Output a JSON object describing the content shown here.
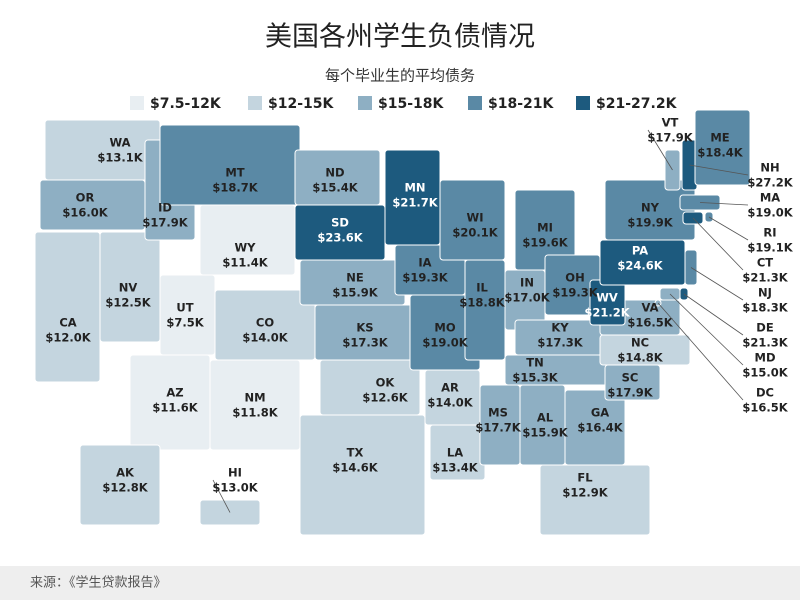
{
  "title": "美国各州学生负债情况",
  "subtitle": "每个毕业生的平均债务",
  "legend": [
    {
      "label": "$7.5-12K",
      "min": 7.5,
      "max": 12,
      "color": "#e8eef2"
    },
    {
      "label": "$12-15K",
      "min": 12,
      "max": 15,
      "color": "#c4d5df"
    },
    {
      "label": "$15-18K",
      "min": 15,
      "max": 18,
      "color": "#8eafc3"
    },
    {
      "label": "$18-21K",
      "min": 18,
      "max": 21,
      "color": "#5a89a5"
    },
    {
      "label": "$21-27.2K",
      "min": 21,
      "max": 27.2,
      "color": "#1d5a7e"
    }
  ],
  "states": [
    {
      "abbr": "WA",
      "value": 13.1,
      "value_label": "$13.1K"
    },
    {
      "abbr": "OR",
      "value": 16.0,
      "value_label": "$16.0K"
    },
    {
      "abbr": "CA",
      "value": 12.0,
      "value_label": "$12.0K"
    },
    {
      "abbr": "NV",
      "value": 12.5,
      "value_label": "$12.5K"
    },
    {
      "abbr": "ID",
      "value": 17.9,
      "value_label": "$17.9K"
    },
    {
      "abbr": "MT",
      "value": 18.7,
      "value_label": "$18.7K"
    },
    {
      "abbr": "WY",
      "value": 11.4,
      "value_label": "$11.4K"
    },
    {
      "abbr": "UT",
      "value": 7.5,
      "value_label": "$7.5K"
    },
    {
      "abbr": "CO",
      "value": 14.0,
      "value_label": "$14.0K"
    },
    {
      "abbr": "AZ",
      "value": 11.6,
      "value_label": "$11.6K"
    },
    {
      "abbr": "NM",
      "value": 11.8,
      "value_label": "$11.8K"
    },
    {
      "abbr": "ND",
      "value": 15.4,
      "value_label": "$15.4K"
    },
    {
      "abbr": "SD",
      "value": 23.6,
      "value_label": "$23.6K"
    },
    {
      "abbr": "NE",
      "value": 15.9,
      "value_label": "$15.9K"
    },
    {
      "abbr": "KS",
      "value": 17.3,
      "value_label": "$17.3K"
    },
    {
      "abbr": "OK",
      "value": 12.6,
      "value_label": "$12.6K"
    },
    {
      "abbr": "TX",
      "value": 14.6,
      "value_label": "$14.6K"
    },
    {
      "abbr": "MN",
      "value": 21.7,
      "value_label": "$21.7K"
    },
    {
      "abbr": "IA",
      "value": 19.3,
      "value_label": "$19.3K"
    },
    {
      "abbr": "MO",
      "value": 19.0,
      "value_label": "$19.0K"
    },
    {
      "abbr": "AR",
      "value": 14.0,
      "value_label": "$14.0K"
    },
    {
      "abbr": "LA",
      "value": 13.4,
      "value_label": "$13.4K"
    },
    {
      "abbr": "WI",
      "value": 20.1,
      "value_label": "$20.1K"
    },
    {
      "abbr": "IL",
      "value": 18.8,
      "value_label": "$18.8K"
    },
    {
      "abbr": "MI",
      "value": 19.6,
      "value_label": "$19.6K"
    },
    {
      "abbr": "IN",
      "value": 17.0,
      "value_label": "$17.0K"
    },
    {
      "abbr": "OH",
      "value": 19.3,
      "value_label": "$19.3K"
    },
    {
      "abbr": "KY",
      "value": 17.3,
      "value_label": "$17.3K"
    },
    {
      "abbr": "TN",
      "value": 15.3,
      "value_label": "$15.3K"
    },
    {
      "abbr": "MS",
      "value": 17.7,
      "value_label": "$17.7K"
    },
    {
      "abbr": "AL",
      "value": 15.9,
      "value_label": "$15.9K"
    },
    {
      "abbr": "FL",
      "value": 12.9,
      "value_label": "$12.9K"
    },
    {
      "abbr": "GA",
      "value": 16.4,
      "value_label": "$16.4K"
    },
    {
      "abbr": "SC",
      "value": 17.9,
      "value_label": "$17.9K"
    },
    {
      "abbr": "NC",
      "value": 14.8,
      "value_label": "$14.8K"
    },
    {
      "abbr": "VA",
      "value": 16.5,
      "value_label": "$16.5K"
    },
    {
      "abbr": "WV",
      "value": 21.2,
      "value_label": "$21.2K"
    },
    {
      "abbr": "PA",
      "value": 24.6,
      "value_label": "$24.6K"
    },
    {
      "abbr": "NY",
      "value": 19.9,
      "value_label": "$19.9K"
    },
    {
      "abbr": "VT",
      "value": 17.9,
      "value_label": "$17.9K"
    },
    {
      "abbr": "NH",
      "value": 27.2,
      "value_label": "$27.2K"
    },
    {
      "abbr": "ME",
      "value": 18.4,
      "value_label": "$18.4K"
    },
    {
      "abbr": "MA",
      "value": 19.0,
      "value_label": "$19.0K"
    },
    {
      "abbr": "RI",
      "value": 19.1,
      "value_label": "$19.1K"
    },
    {
      "abbr": "CT",
      "value": 21.3,
      "value_label": "$21.3K"
    },
    {
      "abbr": "NJ",
      "value": 18.3,
      "value_label": "$18.3K"
    },
    {
      "abbr": "DE",
      "value": 21.3,
      "value_label": "$21.3K"
    },
    {
      "abbr": "MD",
      "value": 15.0,
      "value_label": "$15.0K"
    },
    {
      "abbr": "DC",
      "value": 16.5,
      "value_label": "$16.5K"
    },
    {
      "abbr": "AK",
      "value": 12.8,
      "value_label": "$12.8K"
    },
    {
      "abbr": "HI",
      "value": 13.0,
      "value_label": "$13.0K"
    }
  ],
  "source": "来源：《学生贷款报告》"
}
